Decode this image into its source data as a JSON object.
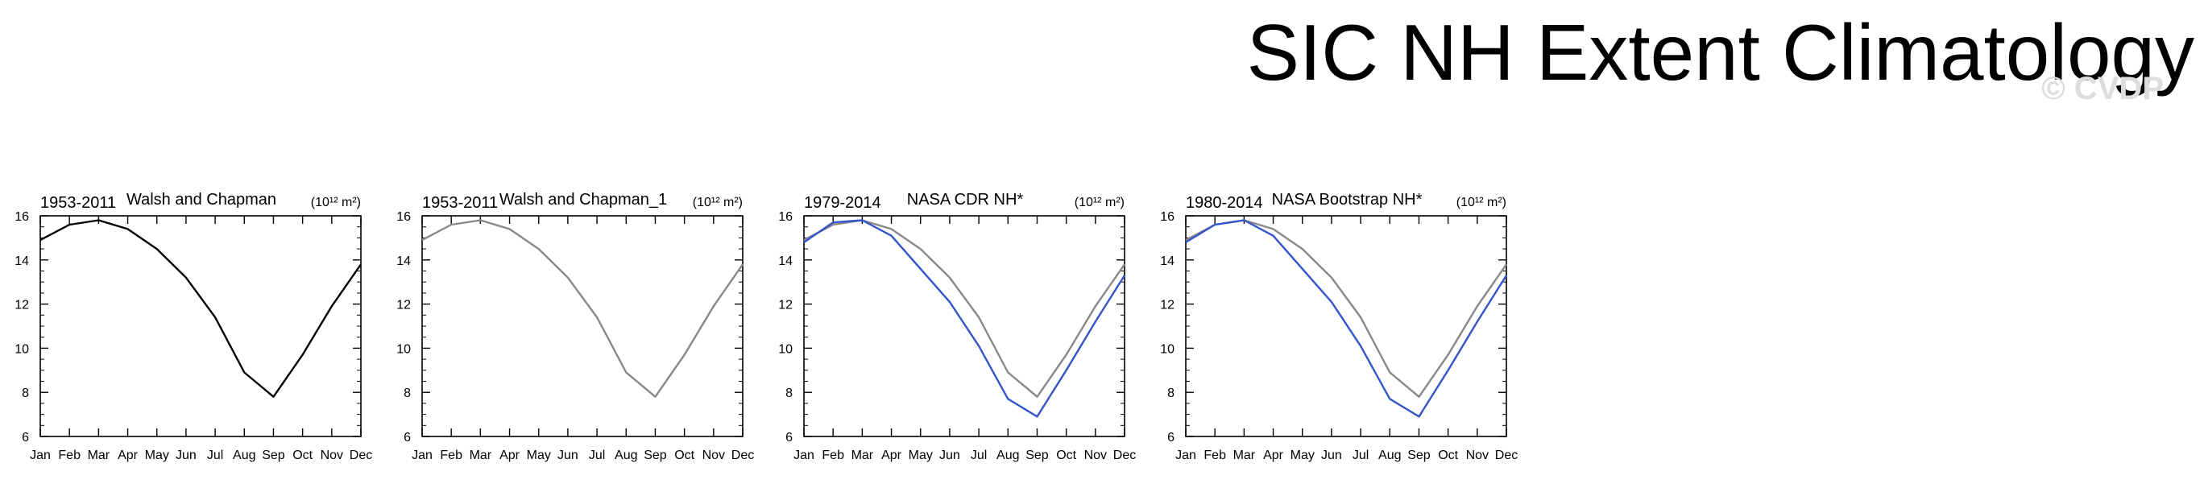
{
  "figure": {
    "title": "SIC NH Extent Climatology",
    "watermark": "© CVDP"
  },
  "chart_data": [
    {
      "type": "line",
      "period": "1953-2011",
      "title": "Walsh and Chapman",
      "units": "(10¹² m²)",
      "categories": [
        "Jan",
        "Feb",
        "Mar",
        "Apr",
        "May",
        "Jun",
        "Jul",
        "Aug",
        "Sep",
        "Oct",
        "Nov",
        "Dec"
      ],
      "ylim": [
        6,
        16
      ],
      "yticks": [
        6,
        8,
        10,
        12,
        14,
        16
      ],
      "series": [
        {
          "color": "#000000",
          "values": [
            14.9,
            15.6,
            15.8,
            15.4,
            14.5,
            13.2,
            11.4,
            8.9,
            7.8,
            9.7,
            11.9,
            13.8
          ]
        }
      ]
    },
    {
      "type": "line",
      "period": "1953-2011",
      "title": "Walsh and Chapman_1",
      "units": "(10¹² m²)",
      "categories": [
        "Jan",
        "Feb",
        "Mar",
        "Apr",
        "May",
        "Jun",
        "Jul",
        "Aug",
        "Sep",
        "Oct",
        "Nov",
        "Dec"
      ],
      "ylim": [
        6,
        16
      ],
      "yticks": [
        6,
        8,
        10,
        12,
        14,
        16
      ],
      "series": [
        {
          "color": "#888888",
          "values": [
            14.9,
            15.6,
            15.8,
            15.4,
            14.5,
            13.2,
            11.4,
            8.9,
            7.8,
            9.7,
            11.9,
            13.8
          ]
        }
      ]
    },
    {
      "type": "line",
      "period": "1979-2014",
      "title": "NASA CDR NH*",
      "units": "(10¹² m²)",
      "categories": [
        "Jan",
        "Feb",
        "Mar",
        "Apr",
        "May",
        "Jun",
        "Jul",
        "Aug",
        "Sep",
        "Oct",
        "Nov",
        "Dec"
      ],
      "ylim": [
        6,
        16
      ],
      "yticks": [
        6,
        8,
        10,
        12,
        14,
        16
      ],
      "series": [
        {
          "color": "#888888",
          "values": [
            14.9,
            15.6,
            15.8,
            15.4,
            14.5,
            13.2,
            11.4,
            8.9,
            7.8,
            9.7,
            11.9,
            13.8
          ]
        },
        {
          "color": "#3355cc",
          "values": [
            14.8,
            15.7,
            15.8,
            15.1,
            13.6,
            12.1,
            10.1,
            7.7,
            6.9,
            9.0,
            11.2,
            13.3
          ]
        }
      ]
    },
    {
      "type": "line",
      "period": "1980-2014",
      "title": "NASA Bootstrap NH*",
      "units": "(10¹² m²)",
      "categories": [
        "Jan",
        "Feb",
        "Mar",
        "Apr",
        "May",
        "Jun",
        "Jul",
        "Aug",
        "Sep",
        "Oct",
        "Nov",
        "Dec"
      ],
      "ylim": [
        6,
        16
      ],
      "yticks": [
        6,
        8,
        10,
        12,
        14,
        16
      ],
      "series": [
        {
          "color": "#888888",
          "values": [
            14.9,
            15.6,
            15.8,
            15.4,
            14.5,
            13.2,
            11.4,
            8.9,
            7.8,
            9.7,
            11.9,
            13.8
          ]
        },
        {
          "color": "#3355cc",
          "values": [
            14.8,
            15.6,
            15.8,
            15.1,
            13.6,
            12.1,
            10.1,
            7.7,
            6.9,
            9.0,
            11.2,
            13.3
          ]
        }
      ]
    }
  ]
}
